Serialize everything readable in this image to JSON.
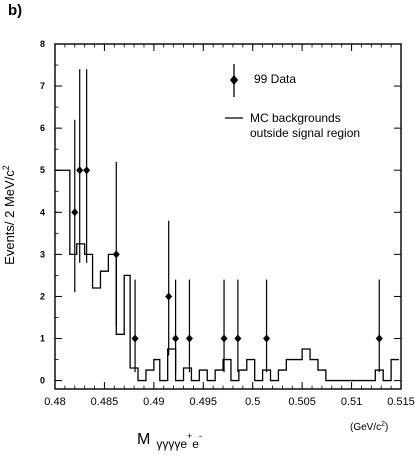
{
  "panel_label": "b)",
  "chart_data": {
    "type": "line",
    "ylabel": "Events/ 2 MeV/c",
    "ylabel_sup": "2",
    "xlabel_main": "M",
    "xlabel_sub": "γγγγe",
    "xlabel_sup1": "+",
    "xlabel_sub2": "e",
    "xlabel_sup2": "-",
    "x_unit": "(GeV/c",
    "x_unit_sup": "2",
    "x_unit_close": ")",
    "xlim": [
      0.48,
      0.515
    ],
    "ylim": [
      -0.2,
      8.0
    ],
    "xticks": [
      0.48,
      0.485,
      0.49,
      0.495,
      0.5,
      0.505,
      0.51,
      0.515
    ],
    "xtick_labels": [
      "0.48",
      "0.485",
      "0.49",
      "0.495",
      "0.5",
      "0.505",
      "0.51",
      "0.515"
    ],
    "yticks": [
      0,
      1,
      2,
      3,
      4,
      5,
      6,
      7,
      8
    ],
    "ytick_labels": [
      "0",
      "1",
      "2",
      "3",
      "4",
      "5",
      "6",
      "7",
      "8"
    ],
    "legend": [
      {
        "label": "99 Data",
        "marker": "point-with-errorbar"
      },
      {
        "label": "MC backgrounds",
        "label2": "outside signal region",
        "marker": "line"
      }
    ],
    "legend_position": "top-right",
    "series": [
      {
        "name": "99 Data",
        "kind": "points",
        "x": [
          0.482,
          0.4825,
          0.4832,
          0.4862,
          0.4881,
          0.4915,
          0.4922,
          0.4936,
          0.4971,
          0.4985,
          0.5014,
          0.5128
        ],
        "y": [
          4,
          5,
          5,
          3,
          1,
          2,
          1,
          1,
          1,
          1,
          1,
          1
        ],
        "yerr_low": [
          1.9,
          2.2,
          2.2,
          1.7,
          0.8,
          1.4,
          0.8,
          0.8,
          0.8,
          0.8,
          0.8,
          0.8
        ],
        "yerr_high": [
          2.2,
          2.4,
          2.4,
          2.2,
          1.4,
          1.8,
          1.4,
          1.4,
          1.4,
          1.4,
          1.4,
          1.4
        ]
      },
      {
        "name": "MC backgrounds outside signal region",
        "kind": "histogram",
        "edges": [
          0.48,
          0.4815,
          0.4822,
          0.483,
          0.4838,
          0.4846,
          0.4854,
          0.4862,
          0.487,
          0.4876,
          0.4884,
          0.4892,
          0.49,
          0.4906,
          0.4914,
          0.4922,
          0.493,
          0.4938,
          0.4946,
          0.4954,
          0.4962,
          0.497,
          0.4978,
          0.4986,
          0.4994,
          0.5002,
          0.501,
          0.5018,
          0.5026,
          0.5034,
          0.505,
          0.5058,
          0.5066,
          0.5074,
          0.5082,
          0.5124,
          0.5132,
          0.514,
          0.5148
        ],
        "values": [
          5.0,
          3.0,
          3.25,
          3.0,
          2.2,
          2.6,
          3.0,
          1.1,
          2.5,
          0.3,
          0.0,
          0.25,
          0.5,
          0.0,
          0.75,
          0.0,
          0.3,
          0.0,
          0.25,
          0.0,
          0.25,
          0.5,
          0.0,
          0.25,
          0.5,
          0.0,
          0.25,
          0.0,
          0.25,
          0.5,
          0.75,
          0.5,
          0.25,
          0.0,
          0.0,
          0.25,
          0.0,
          0.5
        ]
      }
    ]
  }
}
